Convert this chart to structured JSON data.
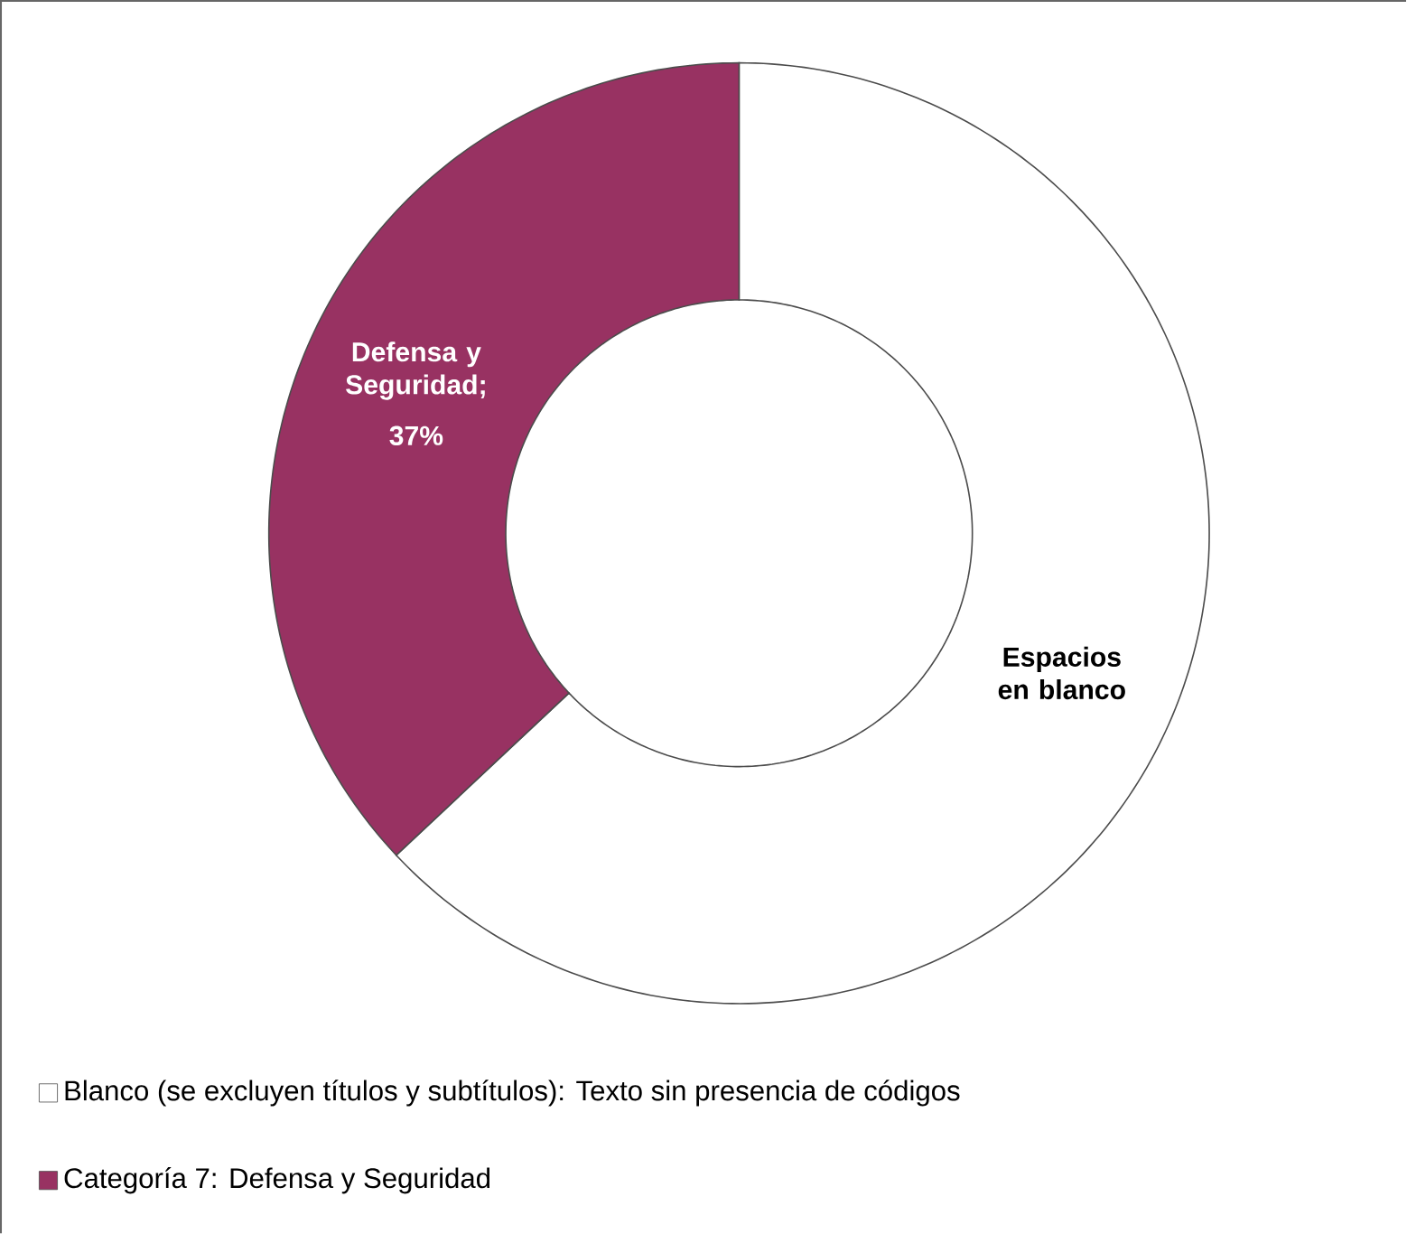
{
  "chart_data": {
    "type": "donut",
    "categories": [
      "Blanco (se excluyen títulos y subtítulos): Texto sin presencia de códigos",
      "Categoría 7: Defensa y Seguridad"
    ],
    "values": [
      63,
      37
    ],
    "colors": [
      "#ffffff",
      "#983262"
    ],
    "value_labels": [
      null,
      "37%"
    ],
    "annotations": [
      "Espacios en blanco",
      "Defensa y Seguridad;"
    ],
    "legend": "bottom"
  }
}
